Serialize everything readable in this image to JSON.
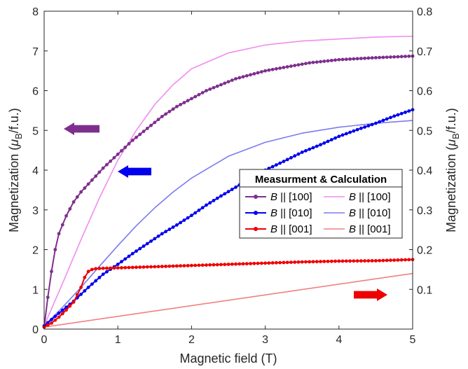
{
  "chart_data": {
    "type": "line",
    "xlabel": "Magnetic field (T)",
    "ylabel_left": "Magnetization (μ_B/f.u.)",
    "ylabel_right": "Magnetization (μ_B/f.u.)",
    "xlim": [
      0,
      5
    ],
    "ylim_left": [
      0,
      8
    ],
    "ylim_right": [
      0,
      0.8
    ],
    "xticks": [
      "0",
      "1",
      "2",
      "3",
      "4",
      "5"
    ],
    "yticks_left": [
      "0",
      "1",
      "2",
      "3",
      "4",
      "5",
      "6",
      "7",
      "8"
    ],
    "yticks_right": [
      "0.1",
      "0.2",
      "0.3",
      "0.4",
      "0.5",
      "0.6",
      "0.7",
      "0.8"
    ],
    "grid": false,
    "legend": {
      "title": "Measurment & Calculation",
      "placement": "center-right",
      "entries": [
        "B || [100]",
        "B || [010]",
        "B || [001]",
        "B || [100]",
        "B || [010]",
        "B || [001]"
      ]
    },
    "series": [
      {
        "name": "B || [100]",
        "kind": "measurement",
        "axis": "left",
        "color": "#7e2f8e",
        "x": [
          0,
          0.05,
          0.1,
          0.15,
          0.2,
          0.3,
          0.4,
          0.5,
          0.6,
          0.7,
          0.8,
          1.0,
          1.2,
          1.4,
          1.6,
          1.8,
          2.0,
          2.2,
          2.4,
          2.6,
          2.8,
          3.0,
          3.3,
          3.6,
          4.0,
          4.5,
          5.0
        ],
        "y": [
          0.05,
          0.8,
          1.45,
          2.0,
          2.4,
          2.85,
          3.2,
          3.45,
          3.65,
          3.85,
          4.05,
          4.4,
          4.75,
          5.05,
          5.35,
          5.6,
          5.8,
          6.0,
          6.15,
          6.3,
          6.4,
          6.5,
          6.6,
          6.7,
          6.78,
          6.83,
          6.87
        ]
      },
      {
        "name": "B || [010]",
        "kind": "measurement",
        "axis": "left",
        "color": "#0000ee",
        "x": [
          0,
          0.2,
          0.4,
          0.6,
          0.8,
          1.0,
          1.2,
          1.4,
          1.6,
          1.8,
          2.0,
          2.2,
          2.4,
          2.6,
          2.8,
          3.0,
          3.25,
          3.5,
          3.75,
          4.0,
          4.25,
          4.5,
          4.75,
          5.0
        ],
        "y": [
          0.08,
          0.4,
          0.7,
          1.05,
          1.38,
          1.63,
          1.9,
          2.15,
          2.4,
          2.62,
          2.86,
          3.12,
          3.35,
          3.57,
          3.8,
          4.0,
          4.22,
          4.45,
          4.64,
          4.85,
          5.02,
          5.18,
          5.36,
          5.52
        ]
      },
      {
        "name": "B || [001]",
        "kind": "measurement",
        "axis": "left",
        "color": "#ee0000",
        "x": [
          0,
          0.1,
          0.2,
          0.3,
          0.4,
          0.5,
          0.55,
          0.6,
          0.65,
          0.7,
          0.8,
          1.0,
          1.5,
          2.0,
          2.5,
          3.0,
          3.5,
          4.0,
          4.5,
          5.0
        ],
        "y": [
          0.05,
          0.15,
          0.3,
          0.48,
          0.68,
          1.05,
          1.3,
          1.45,
          1.5,
          1.52,
          1.53,
          1.54,
          1.57,
          1.6,
          1.63,
          1.66,
          1.69,
          1.71,
          1.72,
          1.75
        ]
      },
      {
        "name": "B || [100]",
        "kind": "calculation",
        "axis": "left",
        "color": "#f08cf0",
        "x": [
          0,
          0.25,
          0.5,
          0.75,
          1.0,
          1.25,
          1.5,
          1.75,
          2.0,
          2.5,
          3.0,
          3.5,
          4.0,
          4.5,
          5.0
        ],
        "y": [
          0.08,
          1.15,
          2.25,
          3.3,
          4.25,
          5.0,
          5.65,
          6.15,
          6.55,
          6.95,
          7.15,
          7.25,
          7.3,
          7.35,
          7.37
        ]
      },
      {
        "name": "B || [010]",
        "kind": "calculation",
        "axis": "left",
        "color": "#7b7bf2",
        "x": [
          0,
          0.25,
          0.5,
          0.75,
          1.0,
          1.25,
          1.5,
          1.75,
          2.0,
          2.5,
          3.0,
          3.5,
          4.0,
          4.5,
          5.0
        ],
        "y": [
          0.08,
          0.55,
          1.05,
          1.58,
          2.1,
          2.6,
          3.05,
          3.45,
          3.8,
          4.35,
          4.7,
          4.93,
          5.08,
          5.18,
          5.25
        ]
      },
      {
        "name": "B || [001]",
        "kind": "calculation",
        "axis": "left",
        "color": "#f08080",
        "x": [
          0,
          5.0
        ],
        "y": [
          0.05,
          1.4
        ]
      }
    ],
    "annotations": [
      {
        "type": "arrow",
        "direction": "left",
        "color": "#7e2f8e",
        "points_to": "left-axis"
      },
      {
        "type": "arrow",
        "direction": "left",
        "color": "#0000ee",
        "points_to": "left-axis"
      },
      {
        "type": "arrow",
        "direction": "right",
        "color": "#ee0000",
        "points_to": "right-axis"
      }
    ]
  }
}
